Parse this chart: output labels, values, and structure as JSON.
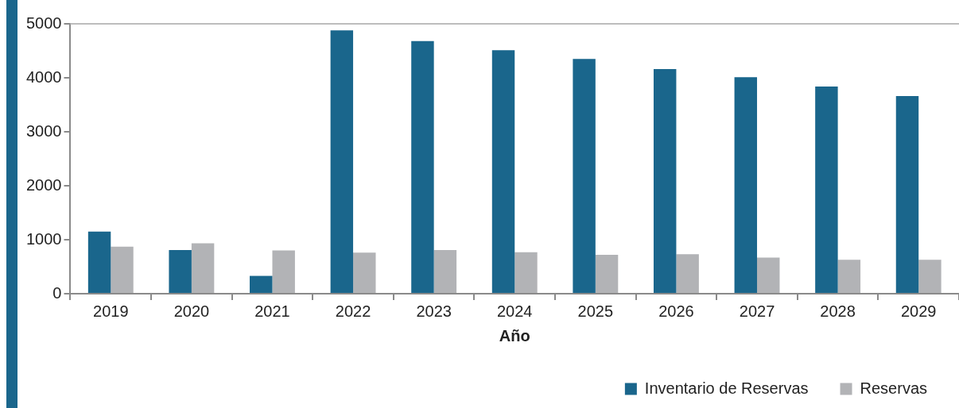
{
  "chart_data": {
    "type": "bar",
    "xlabel": "Año",
    "categories": [
      "2019",
      "2020",
      "2021",
      "2022",
      "2023",
      "2024",
      "2025",
      "2026",
      "2027",
      "2028",
      "2029"
    ],
    "series": [
      {
        "name": "Inventario de Reservas",
        "color": "#1a668c",
        "values": [
          1150,
          810,
          330,
          4880,
          4680,
          4510,
          4350,
          4160,
          4010,
          3840,
          3660
        ]
      },
      {
        "name": "Reservas",
        "color": "#b2b3b6",
        "values": [
          870,
          935,
          800,
          760,
          810,
          770,
          720,
          730,
          670,
          630,
          630
        ]
      }
    ],
    "ylim": [
      0,
      5000
    ],
    "yticks": [
      0,
      1000,
      2000,
      3000,
      4000,
      5000
    ],
    "grid": false,
    "legend": "bottom right"
  }
}
